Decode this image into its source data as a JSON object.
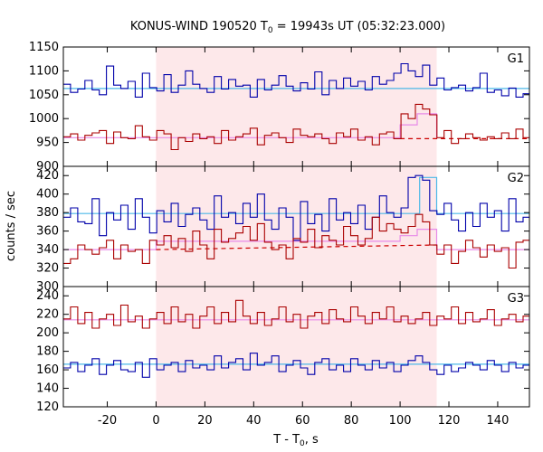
{
  "chart_data": {
    "type": "line",
    "title_prefix": "KONUS-WIND 190520 T",
    "title_sub": "0",
    "title_suffix": " = 19943s UT (05:32:23.000)",
    "xlabel_prefix": "T - T",
    "xlabel_sub": "0",
    "xlabel_suffix": ", s",
    "ylabel": "counts / sec",
    "xlim": [
      -38.0,
      153.0
    ],
    "x_ticks": [
      -20,
      0,
      20,
      40,
      60,
      80,
      100,
      120,
      140
    ],
    "shaded_interval": [
      0,
      115
    ],
    "bin_width": 2.944,
    "x_start": -38.0,
    "colors": {
      "low_series": "#aa0000",
      "high_series": "#0000aa",
      "background_fit": "#4db8e8",
      "source_fit": "#e88ae8",
      "dashed_fit": "#cc0000",
      "shade": "#fde8ea"
    },
    "panels": [
      {
        "label": "G1",
        "ylim": [
          900,
          1150
        ],
        "y_ticks": [
          900,
          950,
          1000,
          1050,
          1100,
          1150
        ],
        "series": [
          {
            "role": "high",
            "values": [
              1072,
              1055,
              1062,
              1080,
              1060,
              1050,
              1110,
              1070,
              1063,
              1078,
              1045,
              1095,
              1065,
              1058,
              1092,
              1055,
              1070,
              1100,
              1072,
              1063,
              1055,
              1088,
              1062,
              1082,
              1068,
              1070,
              1045,
              1082,
              1060,
              1070,
              1090,
              1068,
              1058,
              1075,
              1062,
              1098,
              1050,
              1080,
              1063,
              1085,
              1068,
              1078,
              1060,
              1088,
              1072,
              1080,
              1095,
              1115,
              1100,
              1088,
              1112,
              1070,
              1085,
              1060,
              1065,
              1070,
              1058,
              1065,
              1095,
              1055,
              1060,
              1048,
              1064,
              1045,
              1052,
              1068
            ]
          },
          {
            "role": "low",
            "values": [
              962,
              968,
              955,
              965,
              970,
              975,
              948,
              972,
              960,
              958,
              985,
              962,
              955,
              975,
              968,
              935,
              960,
              952,
              968,
              958,
              962,
              948,
              975,
              955,
              962,
              968,
              980,
              945,
              965,
              970,
              960,
              950,
              978,
              965,
              962,
              968,
              958,
              948,
              970,
              962,
              978,
              955,
              962,
              945,
              968,
              972,
              958,
              1010,
              1000,
              1030,
              1020,
              1008,
              960,
              975,
              948,
              958,
              968,
              960,
              955,
              962,
              958,
              970,
              958,
              978,
              960,
              965
            ]
          }
        ],
        "fit_lines": [
          {
            "role": "background",
            "x": [
              -38,
              153
            ],
            "y": [
              1063,
              1063
            ]
          },
          {
            "role": "source",
            "x": [
              -38,
              100,
              100,
              107,
              107,
              115,
              115
            ],
            "y": [
              960,
              960,
              987,
              987,
              1010,
              1010,
              960
            ]
          },
          {
            "role": "dashed",
            "x": [
              100,
              153
            ],
            "y": [
              958,
              958
            ]
          }
        ]
      },
      {
        "label": "G2",
        "ylim": [
          300,
          430
        ],
        "y_ticks": [
          300,
          320,
          340,
          360,
          380,
          400,
          420
        ],
        "series": [
          {
            "role": "high",
            "values": [
              375,
              385,
              370,
              368,
              395,
              355,
              380,
              372,
              388,
              362,
              395,
              375,
              358,
              382,
              370,
              390,
              365,
              378,
              385,
              372,
              362,
              398,
              375,
              380,
              368,
              390,
              375,
              400,
              372,
              362,
              385,
              375,
              350,
              392,
              368,
              378,
              360,
              395,
              372,
              380,
              368,
              388,
              362,
              375,
              398,
              380,
              375,
              385,
              418,
              420,
              415,
              382,
              378,
              390,
              372,
              360,
              380,
              365,
              390,
              375,
              382,
              360,
              395,
              370,
              375,
              388
            ]
          },
          {
            "role": "low",
            "values": [
              325,
              330,
              345,
              340,
              335,
              342,
              350,
              330,
              345,
              338,
              340,
              325,
              350,
              345,
              355,
              342,
              352,
              338,
              360,
              345,
              330,
              362,
              348,
              352,
              358,
              365,
              350,
              368,
              348,
              340,
              345,
              330,
              352,
              348,
              362,
              342,
              355,
              350,
              345,
              365,
              355,
              345,
              352,
              375,
              360,
              368,
              362,
              358,
              365,
              378,
              370,
              345,
              335,
              345,
              325,
              338,
              350,
              342,
              332,
              345,
              338,
              342,
              320,
              348,
              350,
              338
            ]
          }
        ],
        "fit_lines": [
          {
            "role": "background",
            "x": [
              -38,
              108,
              108,
              115,
              115,
              153
            ],
            "y": [
              379,
              379,
              418,
              418,
              379,
              379
            ]
          },
          {
            "role": "source",
            "x": [
              -38,
              0,
              0,
              100,
              100,
              107,
              107,
              115,
              115,
              153
            ],
            "y": [
              340,
              340,
              349,
              349,
              355,
              355,
              362,
              362,
              340,
              340
            ]
          },
          {
            "role": "dashed",
            "x": [
              0,
              115
            ],
            "y": [
              340,
              345
            ]
          }
        ]
      },
      {
        "label": "G3",
        "ylim": [
          120,
          250
        ],
        "y_ticks": [
          120,
          140,
          160,
          180,
          200,
          220,
          240
        ],
        "series": [
          {
            "role": "high",
            "values": [
              162,
              168,
              158,
              165,
              172,
              155,
              165,
              170,
              160,
              158,
              168,
              152,
              172,
              160,
              165,
              168,
              158,
              170,
              162,
              165,
              160,
              175,
              162,
              168,
              172,
              160,
              178,
              165,
              168,
              175,
              158,
              165,
              170,
              162,
              155,
              168,
              172,
              160,
              165,
              158,
              172,
              165,
              160,
              170,
              162,
              168,
              158,
              165,
              170,
              175,
              168,
              160,
              155,
              165,
              158,
              162,
              168,
              165,
              160,
              170,
              165,
              158,
              168,
              162,
              165,
              168
            ]
          },
          {
            "role": "low",
            "values": [
              215,
              228,
              210,
              222,
              205,
              215,
              220,
              208,
              230,
              212,
              218,
              205,
              215,
              222,
              210,
              228,
              212,
              220,
              205,
              218,
              228,
              210,
              222,
              212,
              235,
              218,
              210,
              222,
              208,
              215,
              228,
              212,
              220,
              205,
              218,
              222,
              210,
              225,
              215,
              212,
              228,
              218,
              210,
              222,
              215,
              228,
              212,
              218,
              210,
              215,
              222,
              208,
              218,
              215,
              228,
              210,
              222,
              212,
              215,
              225,
              208,
              215,
              220,
              212,
              218,
              210
            ]
          }
        ],
        "fit_lines": [
          {
            "role": "background",
            "x": [
              -38,
              153
            ],
            "y": [
              166,
              166
            ]
          },
          {
            "role": "source",
            "x": [
              -38,
              153
            ],
            "y": [
              214,
              214
            ]
          }
        ]
      }
    ]
  }
}
